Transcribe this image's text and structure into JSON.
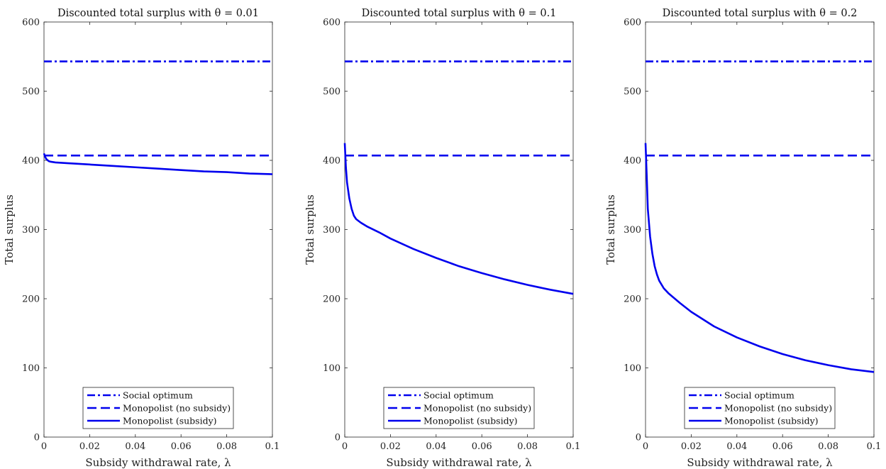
{
  "chart_data": [
    {
      "type": "line",
      "title": "Discounted total surplus with θ = 0.01",
      "xlabel": "Subsidy withdrawal rate, λ",
      "ylabel": "Total surplus",
      "xlim": [
        0,
        0.1
      ],
      "ylim": [
        0,
        600
      ],
      "xticks": [
        "0",
        "0.02",
        "0.04",
        "0.06",
        "0.08",
        "0.1"
      ],
      "yticks": [
        "0",
        "100",
        "200",
        "300",
        "400",
        "500",
        "600"
      ],
      "grid": false,
      "legend_position": "bottom-center",
      "series": [
        {
          "name": "Social optimum",
          "style": "dashdot",
          "color": "#0000ee",
          "x": [
            0,
            0.1
          ],
          "y": [
            543,
            543
          ]
        },
        {
          "name": "Monopolist (no subsidy)",
          "style": "dashed",
          "color": "#0000ee",
          "x": [
            0,
            0.1
          ],
          "y": [
            407,
            407
          ]
        },
        {
          "name": "Monopolist (subsidy)",
          "style": "solid",
          "color": "#0000ee",
          "x": [
            0,
            0.0005,
            0.001,
            0.002,
            0.003,
            0.005,
            0.01,
            0.02,
            0.03,
            0.04,
            0.05,
            0.06,
            0.07,
            0.08,
            0.09,
            0.1
          ],
          "y": [
            410,
            405,
            402,
            399,
            398,
            397,
            396,
            394,
            392,
            390,
            388,
            386,
            384,
            383,
            381,
            380
          ]
        }
      ]
    },
    {
      "type": "line",
      "title": "Discounted total surplus with θ = 0.1",
      "xlabel": "Subsidy withdrawal rate, λ",
      "ylabel": "Total surplus",
      "xlim": [
        0,
        0.1
      ],
      "ylim": [
        0,
        600
      ],
      "xticks": [
        "0",
        "0.02",
        "0.04",
        "0.06",
        "0.08",
        "0.1"
      ],
      "yticks": [
        "0",
        "100",
        "200",
        "300",
        "400",
        "500",
        "600"
      ],
      "grid": false,
      "legend_position": "bottom-center",
      "series": [
        {
          "name": "Social optimum",
          "style": "dashdot",
          "color": "#0000ee",
          "x": [
            0,
            0.1
          ],
          "y": [
            543,
            543
          ]
        },
        {
          "name": "Monopolist (no subsidy)",
          "style": "dashed",
          "color": "#0000ee",
          "x": [
            0,
            0.1
          ],
          "y": [
            407,
            407
          ]
        },
        {
          "name": "Monopolist (subsidy)",
          "style": "solid",
          "color": "#0000ee",
          "x": [
            0,
            0.0005,
            0.001,
            0.002,
            0.003,
            0.004,
            0.005,
            0.007,
            0.01,
            0.015,
            0.02,
            0.03,
            0.04,
            0.05,
            0.06,
            0.07,
            0.08,
            0.09,
            0.1
          ],
          "y": [
            425,
            390,
            368,
            345,
            330,
            320,
            315,
            310,
            304,
            296,
            287,
            272,
            259,
            247,
            237,
            228,
            220,
            213,
            207
          ]
        }
      ]
    },
    {
      "type": "line",
      "title": "Discounted total surplus with θ = 0.2",
      "xlabel": "Subsidy withdrawal rate, λ",
      "ylabel": "Total surplus",
      "xlim": [
        0,
        0.1
      ],
      "ylim": [
        0,
        600
      ],
      "xticks": [
        "0",
        "0.02",
        "0.04",
        "0.06",
        "0.08",
        "0.1"
      ],
      "yticks": [
        "0",
        "100",
        "200",
        "300",
        "400",
        "500",
        "600"
      ],
      "grid": false,
      "legend_position": "bottom-center",
      "series": [
        {
          "name": "Social optimum",
          "style": "dashdot",
          "color": "#0000ee",
          "x": [
            0,
            0.1
          ],
          "y": [
            543,
            543
          ]
        },
        {
          "name": "Monopolist (no subsidy)",
          "style": "dashed",
          "color": "#0000ee",
          "x": [
            0,
            0.1
          ],
          "y": [
            407,
            407
          ]
        },
        {
          "name": "Monopolist (subsidy)",
          "style": "solid",
          "color": "#0000ee",
          "x": [
            0,
            0.0005,
            0.001,
            0.002,
            0.003,
            0.004,
            0.005,
            0.006,
            0.008,
            0.01,
            0.015,
            0.02,
            0.03,
            0.04,
            0.05,
            0.06,
            0.07,
            0.08,
            0.09,
            0.1
          ],
          "y": [
            425,
            380,
            330,
            290,
            265,
            247,
            235,
            226,
            215,
            208,
            194,
            181,
            160,
            144,
            131,
            120,
            111,
            104,
            98,
            94
          ]
        }
      ]
    }
  ]
}
